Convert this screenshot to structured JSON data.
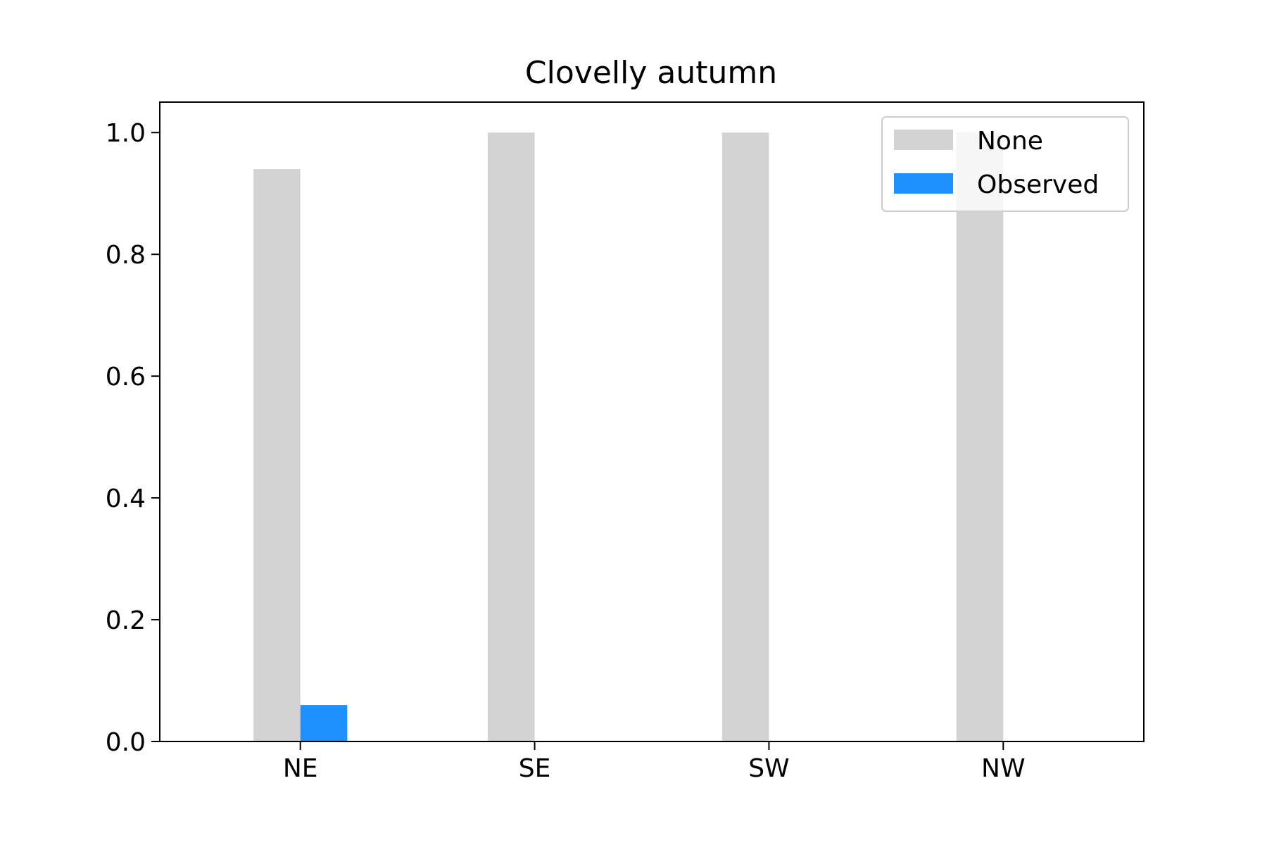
{
  "chart_data": {
    "type": "bar",
    "title": "Clovelly autumn",
    "xlabel": "",
    "ylabel": "",
    "categories": [
      "NE",
      "SE",
      "SW",
      "NW"
    ],
    "series": [
      {
        "name": "None",
        "values": [
          0.94,
          1.0,
          1.0,
          1.0
        ],
        "color": "#d3d3d3"
      },
      {
        "name": "Observed",
        "values": [
          0.06,
          0.0,
          0.0,
          0.0
        ],
        "color": "#1e90ff"
      }
    ],
    "ylim": [
      0,
      1.05
    ],
    "yticks": [
      0.0,
      0.2,
      0.4,
      0.6,
      0.8,
      1.0
    ],
    "ytick_labels": [
      "0.0",
      "0.2",
      "0.4",
      "0.6",
      "0.8",
      "1.0"
    ],
    "grid": false,
    "legend_position": "upper right"
  }
}
